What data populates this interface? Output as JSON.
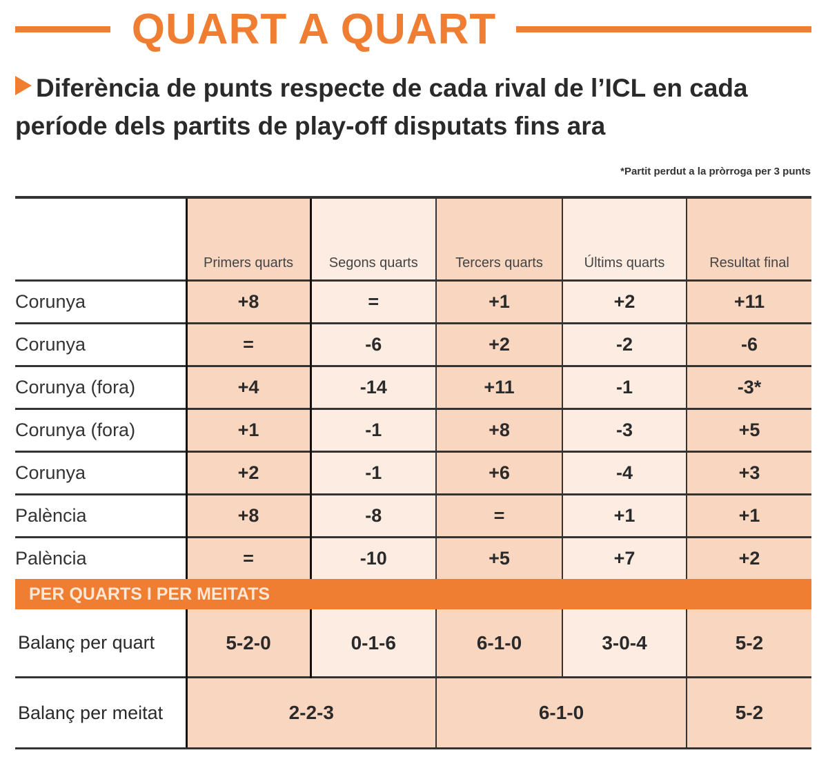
{
  "title": "QUART A QUART",
  "subtitle": "Diferència de punts respecte de cada rival de l’ICL en cada període dels partits de play-off disputats fins ara",
  "footnote": "*Partit perdut a la pròrroga per 3 punts",
  "colors": {
    "accent": "#ef7d32",
    "cell_dark": "#f9d6bf",
    "cell_light": "#fcece1"
  },
  "chart_data": {
    "type": "table",
    "columns": [
      "Primers quarts",
      "Segons quarts",
      "Tercers quarts",
      "Últims quarts",
      "Resultat final"
    ],
    "rows": [
      {
        "rival": "Corunya",
        "values": [
          "+8",
          "=",
          "+1",
          "+2",
          "+11"
        ]
      },
      {
        "rival": "Corunya",
        "values": [
          "=",
          "-6",
          "+2",
          "-2",
          "-6"
        ]
      },
      {
        "rival": "Corunya (fora)",
        "values": [
          "+4",
          "-14",
          "+11",
          "-1",
          "-3*"
        ]
      },
      {
        "rival": "Corunya (fora)",
        "values": [
          "+1",
          "-1",
          "+8",
          "-3",
          "+5"
        ]
      },
      {
        "rival": "Corunya",
        "values": [
          "+2",
          "-1",
          "+6",
          "-4",
          "+3"
        ]
      },
      {
        "rival": "Palència",
        "values": [
          "+8",
          "-8",
          "=",
          "+1",
          "+1"
        ]
      },
      {
        "rival": "Palència",
        "values": [
          "=",
          "-10",
          "+5",
          "+7",
          "+2"
        ]
      }
    ],
    "section_title": "PER QUARTS I PER MEITATS",
    "balance_quarter": {
      "label": "Balanç per quart",
      "values": [
        "5-2-0",
        "0-1-6",
        "6-1-0",
        "3-0-4",
        "5-2"
      ]
    },
    "balance_half": {
      "label": "Balanç per meitat",
      "values": [
        "2-2-3",
        "6-1-0",
        "5-2"
      ]
    }
  }
}
